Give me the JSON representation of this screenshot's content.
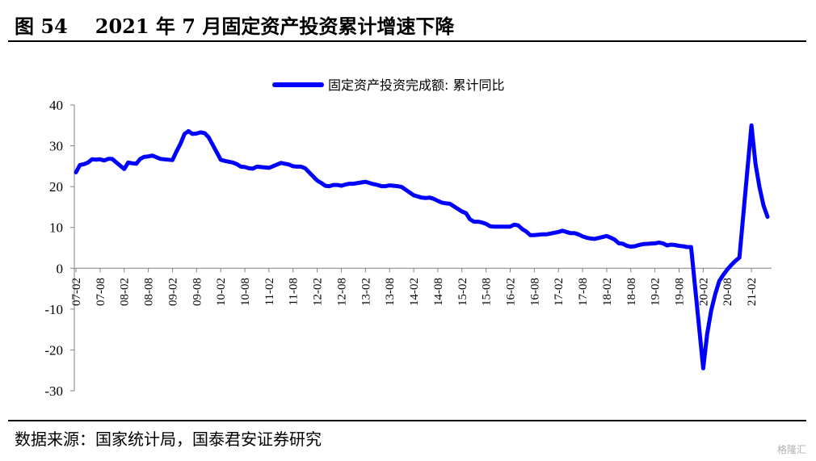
{
  "header": {
    "figure_number": "图 54",
    "title": "2021 年 7 月固定资产投资累计增速下降"
  },
  "footer": {
    "source": "数据来源：国家统计局，国泰君安证券研究",
    "watermark": "格隆汇"
  },
  "colors": {
    "series": "#0000FF",
    "axis": "#808080"
  },
  "chart_data": {
    "type": "line",
    "ylim": [
      -30,
      40
    ],
    "yticks": [
      -30,
      -20,
      -10,
      0,
      10,
      20,
      30,
      40
    ],
    "xtick_labels": [
      "07-02",
      "07-08",
      "08-02",
      "08-08",
      "09-02",
      "09-08",
      "10-02",
      "10-08",
      "11-02",
      "11-08",
      "12-02",
      "12-08",
      "13-02",
      "13-08",
      "14-02",
      "14-08",
      "15-02",
      "15-08",
      "16-02",
      "16-08",
      "17-02",
      "17-08",
      "18-02",
      "18-08",
      "19-02",
      "19-08",
      "20-02",
      "20-08",
      "21-02"
    ],
    "legend_position": "top-center",
    "grid": false,
    "series": [
      {
        "name": "固定资产投资完成额: 累计同比",
        "points": [
          [
            "07-02",
            23.5
          ],
          [
            "07-03",
            25.3
          ],
          [
            "07-04",
            25.5
          ],
          [
            "07-05",
            25.9
          ],
          [
            "07-06",
            26.7
          ],
          [
            "07-07",
            26.6
          ],
          [
            "07-08",
            26.7
          ],
          [
            "07-09",
            26.4
          ],
          [
            "07-10",
            26.8
          ],
          [
            "07-11",
            26.8
          ],
          [
            "08-02",
            24.3
          ],
          [
            "08-03",
            25.9
          ],
          [
            "08-04",
            25.7
          ],
          [
            "08-05",
            25.6
          ],
          [
            "08-06",
            26.8
          ],
          [
            "08-07",
            27.3
          ],
          [
            "08-08",
            27.4
          ],
          [
            "08-09",
            27.6
          ],
          [
            "08-10",
            27.2
          ],
          [
            "08-11",
            26.8
          ],
          [
            "09-02",
            26.5
          ],
          [
            "09-03",
            28.6
          ],
          [
            "09-04",
            30.5
          ],
          [
            "09-05",
            32.9
          ],
          [
            "09-06",
            33.6
          ],
          [
            "09-07",
            32.9
          ],
          [
            "09-08",
            33.0
          ],
          [
            "09-09",
            33.3
          ],
          [
            "09-10",
            33.1
          ],
          [
            "09-11",
            32.1
          ],
          [
            "10-02",
            26.6
          ],
          [
            "10-03",
            26.3
          ],
          [
            "10-04",
            26.1
          ],
          [
            "10-05",
            25.9
          ],
          [
            "10-06",
            25.5
          ],
          [
            "10-07",
            24.9
          ],
          [
            "10-08",
            24.8
          ],
          [
            "10-09",
            24.5
          ],
          [
            "10-10",
            24.4
          ],
          [
            "10-11",
            24.9
          ],
          [
            "11-02",
            24.6
          ],
          [
            "11-03",
            25.0
          ],
          [
            "11-04",
            25.4
          ],
          [
            "11-05",
            25.8
          ],
          [
            "11-06",
            25.6
          ],
          [
            "11-07",
            25.4
          ],
          [
            "11-08",
            25.0
          ],
          [
            "11-09",
            24.9
          ],
          [
            "11-10",
            24.9
          ],
          [
            "11-11",
            24.5
          ],
          [
            "12-02",
            21.5
          ],
          [
            "12-03",
            20.9
          ],
          [
            "12-04",
            20.2
          ],
          [
            "12-05",
            20.1
          ],
          [
            "12-06",
            20.4
          ],
          [
            "12-07",
            20.4
          ],
          [
            "12-08",
            20.2
          ],
          [
            "12-09",
            20.5
          ],
          [
            "12-10",
            20.7
          ],
          [
            "12-11",
            20.7
          ],
          [
            "13-02",
            21.2
          ],
          [
            "13-03",
            20.9
          ],
          [
            "13-04",
            20.6
          ],
          [
            "13-05",
            20.4
          ],
          [
            "13-06",
            20.1
          ],
          [
            "13-07",
            20.1
          ],
          [
            "13-08",
            20.3
          ],
          [
            "13-09",
            20.2
          ],
          [
            "13-10",
            20.1
          ],
          [
            "13-11",
            19.9
          ],
          [
            "14-02",
            17.9
          ],
          [
            "14-03",
            17.6
          ],
          [
            "14-04",
            17.3
          ],
          [
            "14-05",
            17.2
          ],
          [
            "14-06",
            17.3
          ],
          [
            "14-07",
            17.0
          ],
          [
            "14-08",
            16.5
          ],
          [
            "14-09",
            16.1
          ],
          [
            "14-10",
            15.9
          ],
          [
            "14-11",
            15.8
          ],
          [
            "15-02",
            13.9
          ],
          [
            "15-03",
            13.5
          ],
          [
            "15-04",
            12.0
          ],
          [
            "15-05",
            11.4
          ],
          [
            "15-06",
            11.4
          ],
          [
            "15-07",
            11.2
          ],
          [
            "15-08",
            10.9
          ],
          [
            "15-09",
            10.3
          ],
          [
            "15-10",
            10.2
          ],
          [
            "15-11",
            10.2
          ],
          [
            "16-02",
            10.2
          ],
          [
            "16-03",
            10.7
          ],
          [
            "16-04",
            10.5
          ],
          [
            "16-05",
            9.6
          ],
          [
            "16-06",
            9.0
          ],
          [
            "16-07",
            8.1
          ],
          [
            "16-08",
            8.1
          ],
          [
            "16-09",
            8.2
          ],
          [
            "16-10",
            8.3
          ],
          [
            "16-11",
            8.3
          ],
          [
            "17-02",
            8.9
          ],
          [
            "17-03",
            9.2
          ],
          [
            "17-04",
            8.9
          ],
          [
            "17-05",
            8.6
          ],
          [
            "17-06",
            8.6
          ],
          [
            "17-07",
            8.3
          ],
          [
            "17-08",
            7.8
          ],
          [
            "17-09",
            7.5
          ],
          [
            "17-10",
            7.3
          ],
          [
            "17-11",
            7.2
          ],
          [
            "18-02",
            7.9
          ],
          [
            "18-03",
            7.5
          ],
          [
            "18-04",
            7.0
          ],
          [
            "18-05",
            6.1
          ],
          [
            "18-06",
            6.0
          ],
          [
            "18-07",
            5.5
          ],
          [
            "18-08",
            5.3
          ],
          [
            "18-09",
            5.4
          ],
          [
            "18-10",
            5.7
          ],
          [
            "18-11",
            5.9
          ],
          [
            "19-02",
            6.1
          ],
          [
            "19-03",
            6.3
          ],
          [
            "19-04",
            6.1
          ],
          [
            "19-05",
            5.6
          ],
          [
            "19-06",
            5.8
          ],
          [
            "19-07",
            5.7
          ],
          [
            "19-08",
            5.5
          ],
          [
            "19-09",
            5.4
          ],
          [
            "19-10",
            5.2
          ],
          [
            "19-11",
            5.2
          ],
          [
            "20-02",
            -24.5
          ],
          [
            "20-03",
            -16.1
          ],
          [
            "20-04",
            -10.3
          ],
          [
            "20-05",
            -6.3
          ],
          [
            "20-06",
            -3.1
          ],
          [
            "20-07",
            -1.6
          ],
          [
            "20-08",
            -0.3
          ],
          [
            "20-09",
            0.8
          ],
          [
            "20-10",
            1.8
          ],
          [
            "20-11",
            2.6
          ],
          [
            "21-02",
            35.0
          ],
          [
            "21-03",
            25.6
          ],
          [
            "21-04",
            19.9
          ],
          [
            "21-05",
            15.4
          ],
          [
            "21-06",
            12.6
          ]
        ]
      }
    ]
  }
}
